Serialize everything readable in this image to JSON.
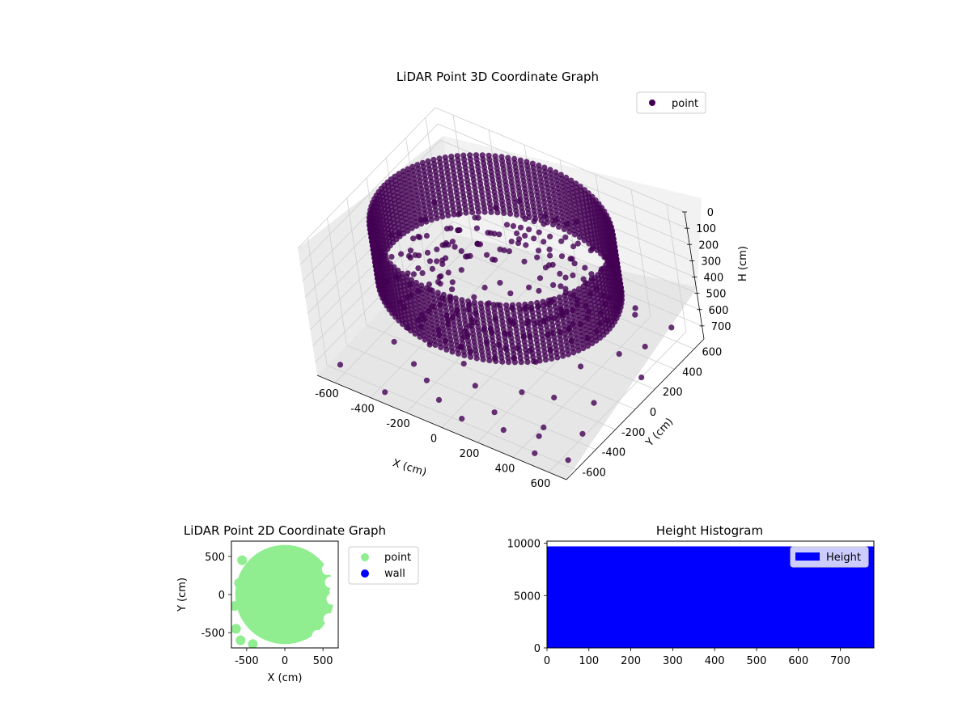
{
  "chart_data": [
    {
      "type": "scatter",
      "projection": "3d",
      "title": "LiDAR Point 3D Coordinate Graph",
      "xlabel": "X (cm)",
      "ylabel": "Y (cm)",
      "zlabel": "H (cm)",
      "xlim": [
        -700,
        700
      ],
      "ylim": [
        -700,
        700
      ],
      "zlim": [
        780,
        0
      ],
      "zaxis_inverted": true,
      "xticks": [
        -600,
        -400,
        -200,
        0,
        200,
        400,
        600
      ],
      "yticks": [
        -600,
        -400,
        -200,
        0,
        200,
        400,
        600
      ],
      "zticks": [
        0,
        100,
        200,
        300,
        400,
        500,
        600,
        700
      ],
      "legend": [
        "point"
      ],
      "legend_position": "upper-right",
      "grid": true,
      "color": "#440154",
      "series": [
        {
          "name": "point",
          "structure": "cylindrical wall ring",
          "radius_cm": 600,
          "height_range_cm": [
            0,
            350
          ],
          "scattered_points": [
            [
              -640,
              150,
              720
            ],
            [
              -600,
              300,
              650
            ],
            [
              -560,
              -50,
              700
            ],
            [
              -520,
              420,
              600
            ],
            [
              -480,
              -300,
              720
            ],
            [
              -450,
              250,
              680
            ],
            [
              -420,
              80,
              560
            ],
            [
              -390,
              500,
              640
            ],
            [
              -360,
              -180,
              600
            ],
            [
              -330,
              350,
              720
            ],
            [
              -300,
              -420,
              700
            ],
            [
              -280,
              120,
              660
            ],
            [
              -250,
              600,
              540
            ],
            [
              -220,
              -60,
              720
            ],
            [
              -200,
              300,
              600
            ],
            [
              -170,
              -520,
              680
            ],
            [
              -140,
              460,
              700
            ],
            [
              -120,
              -250,
              620
            ],
            [
              -90,
              200,
              740
            ],
            [
              -60,
              -600,
              700
            ],
            [
              -30,
              540,
              560
            ],
            [
              0,
              -350,
              740
            ],
            [
              30,
              100,
              700
            ],
            [
              60,
              -600,
              760
            ],
            [
              90,
              420,
              720
            ],
            [
              120,
              -150,
              640
            ],
            [
              150,
              600,
              600
            ],
            [
              180,
              -480,
              740
            ],
            [
              210,
              250,
              740
            ],
            [
              240,
              -300,
              700
            ],
            [
              270,
              500,
              740
            ],
            [
              300,
              -600,
              720
            ],
            [
              330,
              120,
              760
            ],
            [
              360,
              -200,
              740
            ],
            [
              390,
              580,
              700
            ],
            [
              420,
              -420,
              760
            ],
            [
              450,
              300,
              740
            ],
            [
              480,
              -560,
              700
            ],
            [
              510,
              450,
              760
            ],
            [
              540,
              -120,
              740
            ],
            [
              570,
              620,
              720
            ],
            [
              600,
              -350,
              760
            ],
            [
              630,
              200,
              740
            ],
            [
              660,
              -600,
              740
            ],
            [
              -620,
              -600,
              740
            ],
            [
              -580,
              560,
              740
            ],
            [
              -350,
              -640,
              760
            ],
            [
              100,
              640,
              740
            ],
            [
              -700,
              0,
              650
            ],
            [
              350,
              650,
              720
            ],
            [
              -150,
              650,
              700
            ],
            [
              500,
              -650,
              740
            ]
          ]
        }
      ]
    },
    {
      "type": "scatter",
      "title": "LiDAR Point 2D Coordinate Graph",
      "xlabel": "X (cm)",
      "ylabel": "Y (cm)",
      "xlim": [
        -700,
        700
      ],
      "ylim": [
        -700,
        700
      ],
      "xticks": [
        -500,
        0,
        500
      ],
      "yticks": [
        -500,
        0,
        500
      ],
      "legend_position": "outside-right",
      "series": [
        {
          "name": "point",
          "color": "#90ee90",
          "description": "dense disk of points, radius about 650 cm"
        },
        {
          "name": "wall",
          "color": "#0000ff",
          "description": "no visible points"
        }
      ]
    },
    {
      "type": "bar",
      "title": "Height Histogram",
      "xlim": [
        0,
        780
      ],
      "ylim": [
        0,
        10200
      ],
      "xticks": [
        0,
        100,
        200,
        300,
        400,
        500,
        600,
        700
      ],
      "yticks": [
        0,
        5000,
        10000
      ],
      "legend_position": "upper-right",
      "series": [
        {
          "name": "Height",
          "color": "#0000ff",
          "bin_range": [
            0,
            780
          ],
          "count": 9700
        }
      ]
    }
  ]
}
